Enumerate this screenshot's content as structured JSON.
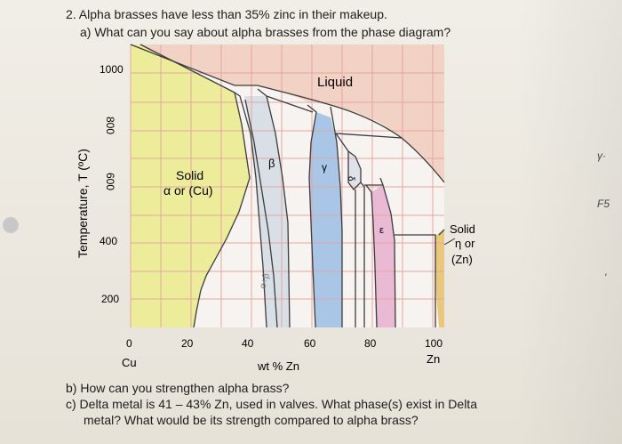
{
  "questions": {
    "main": "2. Alpha brasses have less than 35% zinc in their makeup.",
    "a": "a) What can you say about alpha brasses from the phase diagram?",
    "b": "b) How can you strengthen alpha brass?",
    "c_line1": "c) Delta metal is 41 – 43% Zn, used in valves. What phase(s) exist in Delta",
    "c_line2": "metal? What would be its strength compared to alpha brass?"
  },
  "diagram": {
    "y_axis_label": "Temperature, T (ºC)",
    "y_ticks": [
      "1000",
      "800",
      "600",
      "400",
      "200"
    ],
    "x_ticks": [
      "0",
      "20",
      "40",
      "60",
      "80",
      "100"
    ],
    "x_end_labels": {
      "left": "Cu",
      "right": "Zn"
    },
    "x_axis_label": "wt % Zn",
    "phase_labels": {
      "liquid": "Liquid",
      "alpha_line1": "Solid",
      "alpha_line2": "α or (Cu)",
      "beta": "β",
      "gamma": "γ",
      "delta": "δ",
      "epsilon": "ε",
      "eta_line1": "Solid",
      "eta_line2": "η or",
      "eta_line3": "(Zn)",
      "handwritten_ab": "α+β"
    },
    "colors": {
      "alpha": "#ecec9a",
      "beta": "#d9dfe6",
      "gamma": "#a9c6e6",
      "epsilon": "#eab9d4",
      "eta": "#e9c87e",
      "liquid": "#f3d2c6",
      "grid": "#e4a7a0"
    }
  },
  "margin_notes": {
    "note1": "γ·",
    "note2": "F5",
    "note3": "'"
  }
}
